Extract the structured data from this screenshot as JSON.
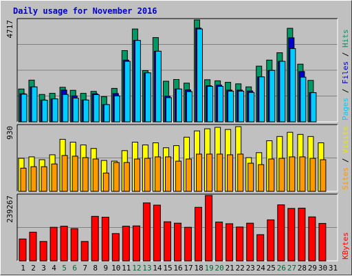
{
  "chart_data": {
    "title": "Daily usage for November 2016",
    "days": [
      "1",
      "2",
      "3",
      "4",
      "5",
      "6",
      "7",
      "8",
      "9",
      "10",
      "11",
      "12",
      "13",
      "14",
      "15",
      "16",
      "17",
      "18",
      "19",
      "20",
      "21",
      "22",
      "23",
      "24",
      "25",
      "26",
      "27",
      "28",
      "29",
      "30",
      "31"
    ],
    "weekend_days": [
      "5",
      "6",
      "12",
      "13",
      "19",
      "20",
      "26",
      "27"
    ],
    "panels": [
      {
        "type": "bar",
        "name": "hits-files-pages",
        "max_label": "4717",
        "ylim": [
          0,
          4717
        ],
        "right_labels": [
          {
            "text": "Hits",
            "color": "#009966"
          },
          {
            "text": " / ",
            "color": "#000000"
          },
          {
            "text": "Files",
            "color": "#0000cc"
          },
          {
            "text": " / ",
            "color": "#000000"
          },
          {
            "text": "Pages",
            "color": "#00ccff"
          }
        ],
        "series": [
          {
            "name": "Hits",
            "color": "#009966",
            "values": [
              1520,
              1930,
              1270,
              1320,
              1600,
              1460,
              1320,
              1410,
              1170,
              1550,
              3300,
              4300,
              2370,
              3900,
              1880,
              1960,
              1790,
              4720,
              1950,
              1900,
              1830,
              1760,
              1620,
              2580,
              2860,
              3200,
              4330,
              2670,
              1920,
              0,
              0
            ]
          },
          {
            "name": "Files",
            "color": "#0000cc",
            "values": [
              1300,
              1620,
              1010,
              1060,
              1470,
              1200,
              1010,
              1300,
              800,
              1310,
              2860,
              3770,
              2270,
              3270,
              1190,
              1520,
              1480,
              4340,
              1670,
              1700,
              1470,
              1470,
              1430,
              2080,
              2380,
              2800,
              3890,
              2330,
              1350,
              0,
              0
            ]
          },
          {
            "name": "Pages",
            "color": "#00ccff",
            "values": [
              1280,
              1620,
              1000,
              1060,
              1270,
              1100,
              1010,
              1260,
              800,
              1200,
              2800,
              3770,
              2270,
              3270,
              1120,
              1520,
              1400,
              4300,
              1640,
              1640,
              1420,
              1420,
              1360,
              2080,
              2380,
              2800,
              3390,
              2070,
              1350,
              0,
              0
            ]
          }
        ]
      },
      {
        "type": "bar",
        "name": "visits-sites",
        "max_label": "930",
        "ylim": [
          0,
          930
        ],
        "right_labels": [
          {
            "text": "Visits",
            "color": "#e6e600"
          },
          {
            "text": " / ",
            "color": "#000000"
          },
          {
            "text": "Sites",
            "color": "#ff9900"
          }
        ],
        "series": [
          {
            "name": "Visits",
            "color": "#ffff00",
            "values": [
              470,
              490,
              450,
              520,
              740,
              700,
              660,
              610,
              440,
              430,
              580,
              700,
              660,
              690,
              620,
              650,
              770,
              860,
              890,
              910,
              880,
              920,
              480,
              550,
              720,
              780,
              840,
              810,
              780,
              690,
              0
            ]
          },
          {
            "name": "Sites",
            "color": "#ff9900",
            "values": [
              330,
              350,
              350,
              390,
              510,
              500,
              480,
              460,
              260,
              410,
              410,
              460,
              470,
              490,
              490,
              430,
              460,
              530,
              530,
              530,
              520,
              530,
              400,
              380,
              460,
              470,
              490,
              490,
              470,
              450,
              0
            ]
          }
        ]
      },
      {
        "type": "bar",
        "name": "kbytes",
        "max_label": "239267",
        "ylim": [
          0,
          239267
        ],
        "right_labels": [
          {
            "text": "KBytes",
            "color": "#ff0000"
          }
        ],
        "series": [
          {
            "name": "KBytes",
            "color": "#ff0000",
            "values": [
              80000,
              105000,
              71000,
              123000,
              127000,
              118000,
              71000,
              163000,
              160000,
              100000,
              127000,
              128000,
              212000,
              204000,
              143000,
              138000,
              123000,
              196000,
              240000,
              142000,
              136000,
              124000,
              138000,
              96000,
              150000,
              205000,
              192000,
              193000,
              161000,
              137000,
              0
            ]
          }
        ]
      }
    ]
  }
}
